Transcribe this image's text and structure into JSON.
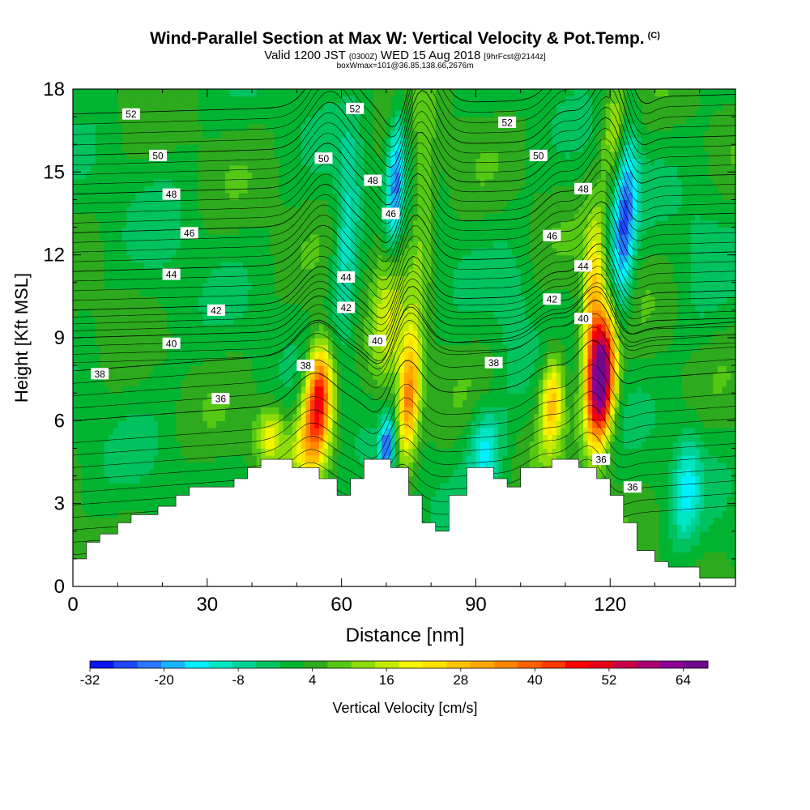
{
  "chart_data": {
    "type": "contour-cross-section",
    "title": "Wind-Parallel Section at Max W: Vertical Velocity & Pot.Temp.",
    "title_mark": "(C)",
    "subtitle": {
      "prefix": "Valid 1200 JST",
      "utc": "(0300Z)",
      "date": "WED 15 Aug 2018",
      "forecast": "[9hrFcst@2144z]"
    },
    "subtitle2": "boxWmax=101@36.85,138.66,2676m",
    "xlabel": "Distance [nm]",
    "ylabel": "Height [Kft MSL]",
    "xlim": [
      0,
      148
    ],
    "ylim": [
      0,
      18
    ],
    "x_ticks": [
      0,
      30,
      60,
      90,
      120
    ],
    "y_ticks": [
      0,
      3,
      6,
      9,
      12,
      15,
      18
    ],
    "colorbar": {
      "label": "Vertical Velocity [cm/s]",
      "min": -32,
      "max": 68,
      "tick_labels": [
        "-32",
        "-20",
        "-8",
        "4",
        "16",
        "28",
        "40",
        "52",
        "64"
      ],
      "colors": [
        "#0a14f0",
        "#1e46fa",
        "#2878ff",
        "#19b4ff",
        "#00f0ff",
        "#00e6c3",
        "#00d296",
        "#00c35f",
        "#00b432",
        "#2daa1e",
        "#55c814",
        "#8cdc0a",
        "#c3eb00",
        "#f5f500",
        "#ffe100",
        "#ffc300",
        "#ffa500",
        "#ff8700",
        "#ff5f00",
        "#ff3700",
        "#ff0000",
        "#e60019",
        "#c80046",
        "#aa006e",
        "#8c0096",
        "#6e0a8c"
      ]
    },
    "terrain_height": [
      [
        0,
        1.0
      ],
      [
        3,
        1.0
      ],
      [
        3,
        1.6
      ],
      [
        6,
        1.6
      ],
      [
        6,
        1.9
      ],
      [
        10,
        1.9
      ],
      [
        10,
        2.3
      ],
      [
        13,
        2.3
      ],
      [
        13,
        2.6
      ],
      [
        19,
        2.6
      ],
      [
        19,
        2.9
      ],
      [
        23,
        2.9
      ],
      [
        23,
        3.3
      ],
      [
        26,
        3.3
      ],
      [
        26,
        3.6
      ],
      [
        36,
        3.6
      ],
      [
        36,
        3.9
      ],
      [
        39,
        3.9
      ],
      [
        39,
        4.3
      ],
      [
        42,
        4.3
      ],
      [
        42,
        4.6
      ],
      [
        49,
        4.6
      ],
      [
        49,
        4.3
      ],
      [
        55,
        4.3
      ],
      [
        55,
        3.9
      ],
      [
        59,
        3.9
      ],
      [
        59,
        3.3
      ],
      [
        62,
        3.3
      ],
      [
        62,
        3.9
      ],
      [
        65,
        3.9
      ],
      [
        65,
        4.6
      ],
      [
        71,
        4.6
      ],
      [
        71,
        4.3
      ],
      [
        75,
        4.3
      ],
      [
        75,
        3.3
      ],
      [
        78,
        3.3
      ],
      [
        78,
        2.3
      ],
      [
        81,
        2.3
      ],
      [
        81,
        2.0
      ],
      [
        84,
        2.0
      ],
      [
        84,
        3.3
      ],
      [
        88,
        3.3
      ],
      [
        88,
        4.3
      ],
      [
        94,
        4.3
      ],
      [
        94,
        3.9
      ],
      [
        97,
        3.9
      ],
      [
        97,
        3.6
      ],
      [
        100,
        3.6
      ],
      [
        100,
        4.3
      ],
      [
        107,
        4.3
      ],
      [
        107,
        4.6
      ],
      [
        113,
        4.6
      ],
      [
        113,
        4.3
      ],
      [
        117,
        4.3
      ],
      [
        117,
        3.9
      ],
      [
        120,
        3.9
      ],
      [
        120,
        3.3
      ],
      [
        123,
        3.3
      ],
      [
        123,
        2.3
      ],
      [
        126,
        2.3
      ],
      [
        126,
        1.3
      ],
      [
        130,
        1.3
      ],
      [
        130,
        0.9
      ],
      [
        133,
        0.9
      ],
      [
        133,
        0.7
      ],
      [
        140,
        0.7
      ],
      [
        140,
        0.3
      ],
      [
        148,
        0.3
      ]
    ],
    "w_features": [
      {
        "x": 55,
        "y": 7.0,
        "sx": 3.0,
        "sy": 1.8,
        "amp": 45
      },
      {
        "x": 53,
        "y": 5.2,
        "sx": 4.0,
        "sy": 1.5,
        "amp": 18
      },
      {
        "x": 75,
        "y": 6.8,
        "sx": 2.4,
        "sy": 2.2,
        "amp": 34
      },
      {
        "x": 71,
        "y": 11.5,
        "sx": 3.5,
        "sy": 4.5,
        "amp": 15
      },
      {
        "x": 78,
        "y": 13.0,
        "sx": 2.5,
        "sy": 4.0,
        "amp": 10
      },
      {
        "x": 107,
        "y": 6.8,
        "sx": 2.6,
        "sy": 1.8,
        "amp": 26
      },
      {
        "x": 118,
        "y": 7.5,
        "sx": 3.0,
        "sy": 2.3,
        "amp": 72
      },
      {
        "x": 116,
        "y": 10.5,
        "sx": 2.5,
        "sy": 3.0,
        "amp": 22
      },
      {
        "x": 44,
        "y": 5.5,
        "sx": 3.0,
        "sy": 1.0,
        "amp": 18
      },
      {
        "x": 121,
        "y": 16.5,
        "sx": 2.8,
        "sy": 1.8,
        "amp": 14
      },
      {
        "x": 72,
        "y": 14.5,
        "sx": 2.2,
        "sy": 2.8,
        "amp": -30
      },
      {
        "x": 70,
        "y": 5.0,
        "sx": 1.6,
        "sy": 1.2,
        "amp": -26
      },
      {
        "x": 61,
        "y": 12.5,
        "sx": 2.8,
        "sy": 3.5,
        "amp": -14
      },
      {
        "x": 123,
        "y": 13.0,
        "sx": 2.6,
        "sy": 3.5,
        "amp": -26
      },
      {
        "x": 92,
        "y": 5.0,
        "sx": 3.5,
        "sy": 1.5,
        "amp": -16
      },
      {
        "x": 137,
        "y": 3.5,
        "sx": 3.0,
        "sy": 2.0,
        "amp": -14
      },
      {
        "x": 98,
        "y": 9.0,
        "sx": 4.0,
        "sy": 4.0,
        "amp": -4
      },
      {
        "x": 20,
        "y": 11.0,
        "sx": 6.0,
        "sy": 6.0,
        "amp": -2
      },
      {
        "x": 140,
        "y": 12.0,
        "sx": 5.0,
        "sy": 4.0,
        "amp": -3
      }
    ],
    "theta_lines": [
      {
        "value": 36,
        "label": "36",
        "y_base": 6.0
      },
      {
        "value": 38,
        "label": "38",
        "y_base": 7.8
      },
      {
        "value": 40,
        "label": "40",
        "y_base": 9.0
      },
      {
        "value": 42,
        "label": "42",
        "y_base": 10.0
      },
      {
        "value": 44,
        "label": "44",
        "y_base": 11.4
      },
      {
        "value": 46,
        "label": "46",
        "y_base": 12.8
      },
      {
        "value": 48,
        "label": "48",
        "y_base": 14.2
      },
      {
        "value": 50,
        "label": "50",
        "y_base": 15.6
      },
      {
        "value": 52,
        "label": "52",
        "y_base": 17.1
      }
    ],
    "theta_labels": [
      {
        "text": "52",
        "x": 13,
        "y": 17.1
      },
      {
        "text": "50",
        "x": 19,
        "y": 15.6
      },
      {
        "text": "48",
        "x": 22,
        "y": 14.2
      },
      {
        "text": "46",
        "x": 26,
        "y": 12.8
      },
      {
        "text": "44",
        "x": 22,
        "y": 11.3
      },
      {
        "text": "42",
        "x": 32,
        "y": 10.0
      },
      {
        "text": "40",
        "x": 22,
        "y": 8.8
      },
      {
        "text": "38",
        "x": 6,
        "y": 7.7
      },
      {
        "text": "36",
        "x": 33,
        "y": 6.8
      },
      {
        "text": "52",
        "x": 63,
        "y": 17.3
      },
      {
        "text": "50",
        "x": 56,
        "y": 15.5
      },
      {
        "text": "48",
        "x": 67,
        "y": 14.7
      },
      {
        "text": "46",
        "x": 71,
        "y": 13.5
      },
      {
        "text": "44",
        "x": 61,
        "y": 11.2
      },
      {
        "text": "42",
        "x": 61,
        "y": 10.1
      },
      {
        "text": "40",
        "x": 68,
        "y": 8.9
      },
      {
        "text": "38",
        "x": 52,
        "y": 8.0
      },
      {
        "text": "52",
        "x": 97,
        "y": 16.8
      },
      {
        "text": "50",
        "x": 104,
        "y": 15.6
      },
      {
        "text": "48",
        "x": 114,
        "y": 14.4
      },
      {
        "text": "46",
        "x": 107,
        "y": 12.7
      },
      {
        "text": "44",
        "x": 114,
        "y": 11.6
      },
      {
        "text": "42",
        "x": 107,
        "y": 10.4
      },
      {
        "text": "40",
        "x": 114,
        "y": 9.7
      },
      {
        "text": "38",
        "x": 94,
        "y": 8.1
      },
      {
        "text": "36",
        "x": 118,
        "y": 4.6
      },
      {
        "text": "36",
        "x": 125,
        "y": 3.6
      }
    ]
  }
}
